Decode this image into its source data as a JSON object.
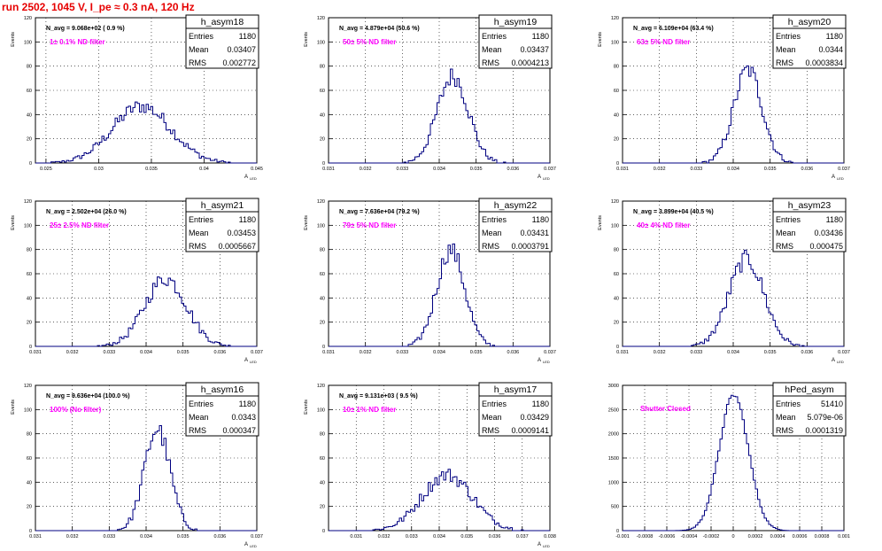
{
  "run_title": "run 2502,  1045 V, I_pe ≈ 0.3 nA, 120 Hz",
  "colors": {
    "title": "#e60000",
    "hist_line": "#000080",
    "annotation": "#ff00ff",
    "grid": "#000000"
  },
  "chart_data": [
    {
      "type": "bar",
      "hist_name": "h_asym18",
      "stats": {
        "Entries": "1180",
        "Mean": "0.03407",
        "RMS": "0.002772"
      },
      "navg_text": "N_avg = 9.068e+02 ( 0.9 %)",
      "filter_text": "1± 0.1% ND filter",
      "ylabel": "Events",
      "xlabel": "A",
      "xlabel_sub": "LED",
      "xlim": [
        0.024,
        0.045
      ],
      "ylim": [
        0,
        120
      ],
      "xticks": [
        "0.025",
        "0.03",
        "0.035",
        "0.04",
        "0.045"
      ],
      "xtick_values": [
        0.025,
        0.03,
        0.035,
        0.04,
        0.045
      ],
      "yticks": [
        "0",
        "20",
        "40",
        "60",
        "80",
        "100",
        "120"
      ],
      "gauss": {
        "mean": 0.03407,
        "rms": 0.002772,
        "peak": 47
      }
    },
    {
      "type": "bar",
      "hist_name": "h_asym19",
      "stats": {
        "Entries": "1180",
        "Mean": "0.03437",
        "RMS": "0.0004213"
      },
      "navg_text": "N_avg = 4.879e+04 (50.6 %)",
      "filter_text": "50± 5% ND filter",
      "ylabel": "Events",
      "xlabel": "A",
      "xlabel_sub": "LED",
      "xlim": [
        0.031,
        0.037
      ],
      "ylim": [
        0,
        120
      ],
      "xticks": [
        "0.031",
        "0.032",
        "0.033",
        "0.034",
        "0.035",
        "0.036",
        "0.037"
      ],
      "xtick_values": [
        0.031,
        0.032,
        0.033,
        0.034,
        0.035,
        0.036,
        0.037
      ],
      "yticks": [
        "0",
        "20",
        "40",
        "60",
        "80",
        "100",
        "120"
      ],
      "gauss": {
        "mean": 0.03437,
        "rms": 0.0004213,
        "peak": 72
      }
    },
    {
      "type": "bar",
      "hist_name": "h_asym20",
      "stats": {
        "Entries": "1180",
        "Mean": "0.0344",
        "RMS": "0.0003834"
      },
      "navg_text": "N_avg = 6.109e+04 (63.4 %)",
      "filter_text": "63± 5% ND filter",
      "ylabel": "Events",
      "xlabel": "A",
      "xlabel_sub": "LED",
      "xlim": [
        0.031,
        0.037
      ],
      "ylim": [
        0,
        120
      ],
      "xticks": [
        "0.031",
        "0.032",
        "0.033",
        "0.034",
        "0.035",
        "0.036",
        "0.037"
      ],
      "xtick_values": [
        0.031,
        0.032,
        0.033,
        0.034,
        0.035,
        0.036,
        0.037
      ],
      "yticks": [
        "0",
        "20",
        "40",
        "60",
        "80",
        "100",
        "120"
      ],
      "gauss": {
        "mean": 0.0344,
        "rms": 0.0003834,
        "peak": 77
      }
    },
    {
      "type": "bar",
      "hist_name": "h_asym21",
      "stats": {
        "Entries": "1180",
        "Mean": "0.03453",
        "RMS": "0.0005667"
      },
      "navg_text": "N_avg = 2.502e+04 (26.0 %)",
      "filter_text": "25± 2.5% ND filter",
      "ylabel": "Events",
      "xlabel": "A",
      "xlabel_sub": "LED",
      "xlim": [
        0.031,
        0.037
      ],
      "ylim": [
        0,
        120
      ],
      "xticks": [
        "0.031",
        "0.032",
        "0.033",
        "0.034",
        "0.035",
        "0.036",
        "0.037"
      ],
      "xtick_values": [
        0.031,
        0.032,
        0.033,
        0.034,
        0.035,
        0.036,
        0.037
      ],
      "yticks": [
        "0",
        "20",
        "40",
        "60",
        "80",
        "100",
        "120"
      ],
      "gauss": {
        "mean": 0.03453,
        "rms": 0.0005667,
        "peak": 56
      }
    },
    {
      "type": "bar",
      "hist_name": "h_asym22",
      "stats": {
        "Entries": "1180",
        "Mean": "0.03431",
        "RMS": "0.0003791"
      },
      "navg_text": "N_avg = 7.636e+04 (79.2 %)",
      "filter_text": "79± 5% ND filter",
      "ylabel": "Events",
      "xlabel": "A",
      "xlabel_sub": "LED",
      "xlim": [
        0.031,
        0.037
      ],
      "ylim": [
        0,
        120
      ],
      "xticks": [
        "0.031",
        "0.032",
        "0.033",
        "0.034",
        "0.035",
        "0.036",
        "0.037"
      ],
      "xtick_values": [
        0.031,
        0.032,
        0.033,
        0.034,
        0.035,
        0.036,
        0.037
      ],
      "yticks": [
        "0",
        "20",
        "40",
        "60",
        "80",
        "100",
        "120"
      ],
      "gauss": {
        "mean": 0.03431,
        "rms": 0.0003791,
        "peak": 80
      }
    },
    {
      "type": "bar",
      "hist_name": "h_asym23",
      "stats": {
        "Entries": "1180",
        "Mean": "0.03436",
        "RMS": "0.000475"
      },
      "navg_text": "N_avg = 3.899e+04 (40.5 %)",
      "filter_text": "40± 4% ND filter",
      "ylabel": "Events",
      "xlabel": "A",
      "xlabel_sub": "LED",
      "xlim": [
        0.031,
        0.037
      ],
      "ylim": [
        0,
        120
      ],
      "xticks": [
        "0.031",
        "0.032",
        "0.033",
        "0.034",
        "0.035",
        "0.036",
        "0.037"
      ],
      "xtick_values": [
        0.031,
        0.032,
        0.033,
        0.034,
        0.035,
        0.036,
        0.037
      ],
      "yticks": [
        "0",
        "20",
        "40",
        "60",
        "80",
        "100",
        "120"
      ],
      "gauss": {
        "mean": 0.03436,
        "rms": 0.000475,
        "peak": 72
      }
    },
    {
      "type": "bar",
      "hist_name": "h_asym16",
      "stats": {
        "Entries": "1180",
        "Mean": "0.0343",
        "RMS": "0.000347"
      },
      "navg_text": "N_avg = 9.636e+04 (100.0 %)",
      "filter_text": "100% (No filter)",
      "ylabel": "Events",
      "xlabel": "A",
      "xlabel_sub": "LED",
      "xlim": [
        0.031,
        0.037
      ],
      "ylim": [
        0,
        120
      ],
      "xticks": [
        "0.031",
        "0.032",
        "0.033",
        "0.034",
        "0.035",
        "0.036",
        "0.037"
      ],
      "xtick_values": [
        0.031,
        0.032,
        0.033,
        0.034,
        0.035,
        0.036,
        0.037
      ],
      "yticks": [
        "0",
        "20",
        "40",
        "60",
        "80",
        "100",
        "120"
      ],
      "gauss": {
        "mean": 0.0343,
        "rms": 0.000347,
        "peak": 84
      }
    },
    {
      "type": "bar",
      "hist_name": "h_asym17",
      "stats": {
        "Entries": "1180",
        "Mean": "0.03429",
        "RMS": "0.0009141"
      },
      "navg_text": "N_avg = 9.131e+03 ( 9.5 %)",
      "filter_text": "10± 1% ND filter",
      "ylabel": "Events",
      "xlabel": "A",
      "xlabel_sub": "LED",
      "xlim": [
        0.03,
        0.038
      ],
      "ylim": [
        0,
        120
      ],
      "xticks": [
        "0.031",
        "0.032",
        "0.033",
        "0.034",
        "0.035",
        "0.036",
        "0.037",
        "0.038"
      ],
      "xtick_values": [
        0.031,
        0.032,
        0.033,
        0.034,
        0.035,
        0.036,
        0.037,
        0.038
      ],
      "yticks": [
        "0",
        "20",
        "40",
        "60",
        "80",
        "100",
        "120"
      ],
      "gauss": {
        "mean": 0.03429,
        "rms": 0.0009141,
        "peak": 46
      }
    },
    {
      "type": "bar",
      "hist_name": "hPed_asym",
      "stats": {
        "Entries": "51410",
        "Mean": "5.079e-06",
        "RMS": "0.0001319"
      },
      "navg_text": "",
      "filter_text": "Shutter Closed",
      "ylabel": "",
      "xlabel": "",
      "xlabel_sub": "",
      "xlim": [
        -0.001,
        0.001
      ],
      "ylim": [
        0,
        3300
      ],
      "xticks": [
        "-0.001",
        "-0.0008",
        "-0.0006",
        "-0.0004",
        "-0.0002",
        "0",
        "0.0002",
        "0.0004",
        "0.0006",
        "0.0008",
        "0.001"
      ],
      "xtick_values": [
        -0.001,
        -0.0008,
        -0.0006,
        -0.0004,
        -0.0002,
        0,
        0.0002,
        0.0004,
        0.0006,
        0.0008,
        0.001
      ],
      "yticks": [
        "0",
        "500",
        "1000",
        "1500",
        "2000",
        "2500",
        "3000"
      ],
      "gauss": {
        "mean": 5.079e-06,
        "rms": 0.0001319,
        "peak": 3080
      }
    }
  ]
}
